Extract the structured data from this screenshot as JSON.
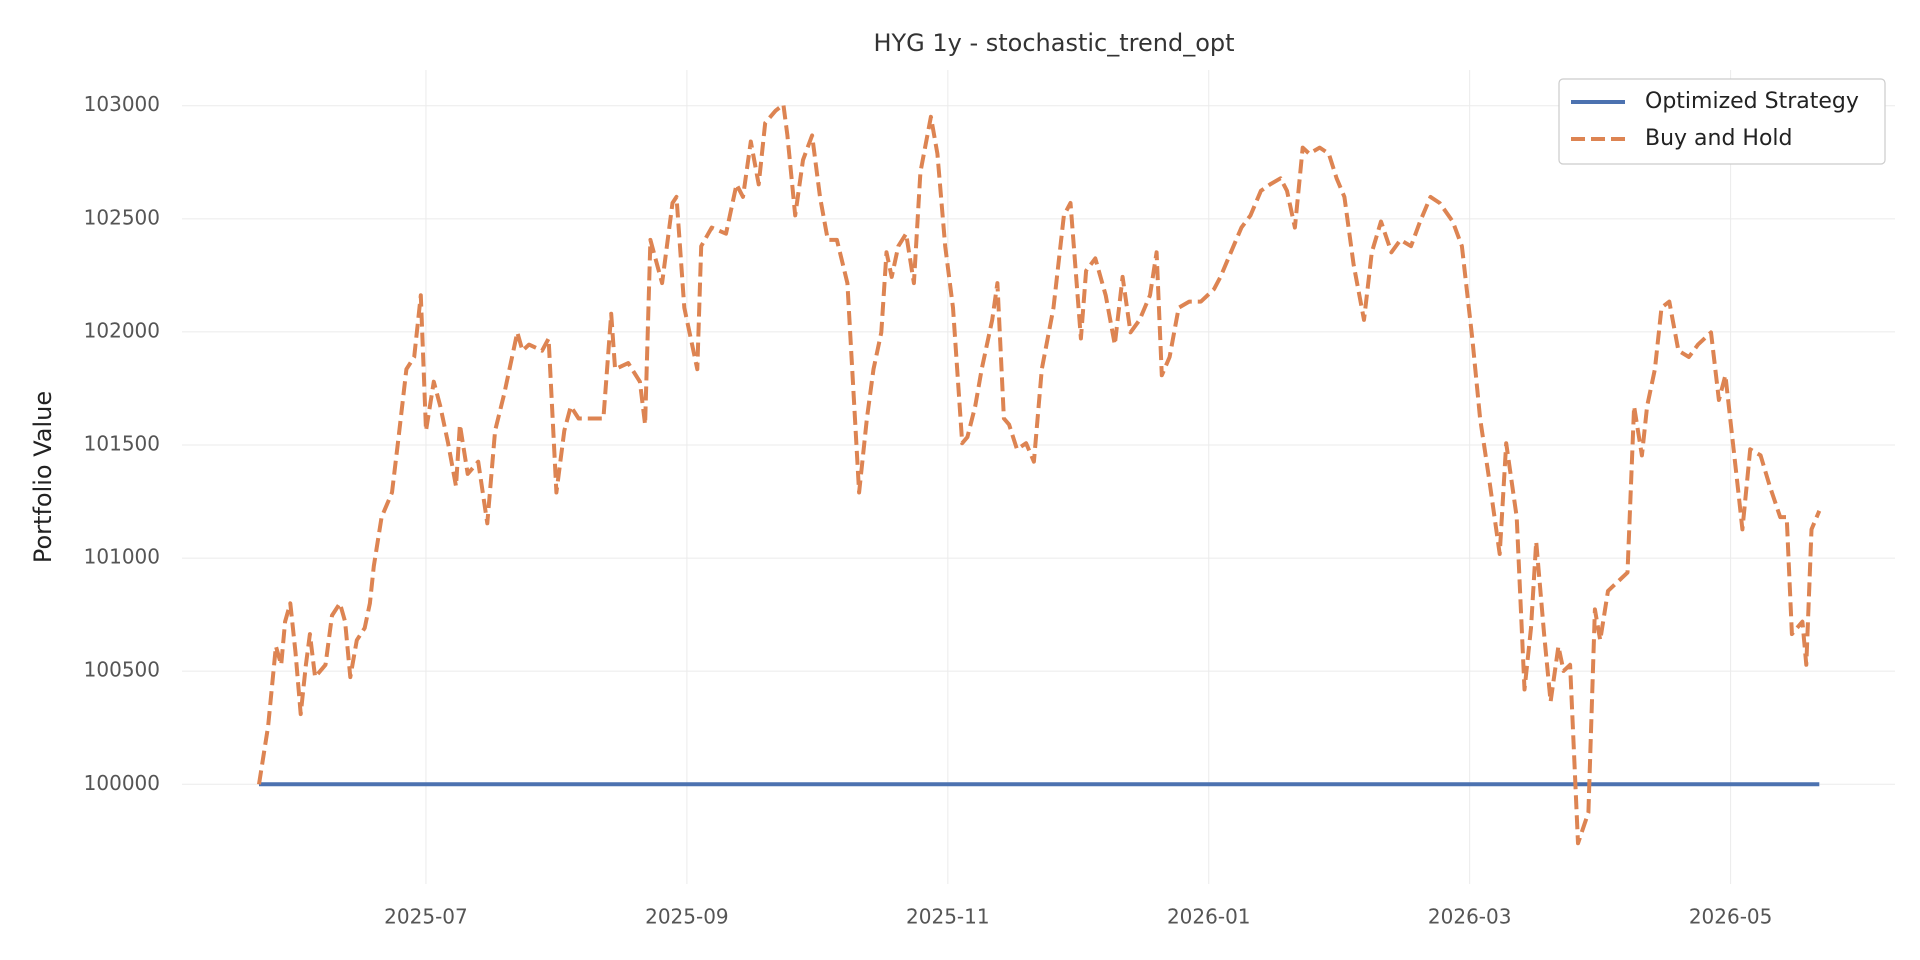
{
  "chart_data": {
    "type": "line",
    "title": "HYG 1y - stochastic_trend_opt",
    "y_label": "Portfolio Value",
    "xlim": [
      4.13,
      17.26
    ],
    "xticks": [
      {
        "value": 6,
        "label": "2025-07"
      },
      {
        "value": 8,
        "label": "2025-09"
      },
      {
        "value": 10,
        "label": "2025-11"
      },
      {
        "value": 12,
        "label": "2026-01"
      },
      {
        "value": 14,
        "label": "2026-03"
      },
      {
        "value": 16,
        "label": "2026-05"
      }
    ],
    "ylim": [
      99559,
      103158
    ],
    "yticks": [
      100000,
      100500,
      101000,
      101500,
      102000,
      102500,
      103000
    ],
    "grid": true,
    "legend": "upper right",
    "series": [
      {
        "name": "Optimized Strategy",
        "color": "#4c72b0",
        "linestyle": "solid",
        "x": [
          4.72,
          16.68
        ],
        "values": [
          100000,
          100000
        ]
      },
      {
        "name": "Buy and Hold",
        "color": "#dd8452",
        "linestyle": "dashed",
        "x": [
          4.72,
          4.79,
          4.85,
          4.89,
          4.92,
          4.96,
          5.0,
          5.04,
          5.08,
          5.11,
          5.15,
          5.23,
          5.28,
          5.34,
          5.38,
          5.42,
          5.47,
          5.53,
          5.57,
          5.6,
          5.66,
          5.74,
          5.79,
          5.85,
          5.91,
          5.96,
          6.0,
          6.06,
          6.11,
          6.17,
          6.23,
          6.26,
          6.32,
          6.4,
          6.47,
          6.53,
          6.6,
          6.7,
          6.74,
          6.79,
          6.89,
          6.94,
          7.0,
          7.06,
          7.11,
          7.17,
          7.26,
          7.36,
          7.42,
          7.45,
          7.55,
          7.64,
          7.68,
          7.72,
          7.81,
          7.89,
          7.92,
          7.98,
          8.08,
          8.11,
          8.19,
          8.3,
          8.38,
          8.43,
          8.49,
          8.55,
          8.6,
          8.68,
          8.74,
          8.77,
          8.83,
          8.89,
          8.96,
          9.02,
          9.08,
          9.15,
          9.23,
          9.32,
          9.38,
          9.43,
          9.49,
          9.53,
          9.57,
          9.62,
          9.68,
          9.74,
          9.79,
          9.87,
          9.92,
          9.98,
          10.04,
          10.11,
          10.15,
          10.21,
          10.26,
          10.34,
          10.38,
          10.43,
          10.47,
          10.53,
          10.6,
          10.66,
          10.72,
          10.81,
          10.89,
          10.94,
          11.02,
          11.06,
          11.13,
          11.21,
          11.28,
          11.34,
          11.4,
          11.47,
          11.55,
          11.6,
          11.64,
          11.7,
          11.77,
          11.85,
          11.94,
          12.04,
          12.09,
          12.15,
          12.25,
          12.32,
          12.4,
          12.47,
          12.55,
          12.6,
          12.66,
          12.72,
          12.77,
          12.85,
          12.92,
          12.98,
          13.04,
          13.11,
          13.19,
          13.25,
          13.32,
          13.4,
          13.47,
          13.55,
          13.62,
          13.7,
          13.77,
          13.87,
          13.94,
          14.02,
          14.08,
          14.15,
          14.23,
          14.28,
          14.36,
          14.42,
          14.47,
          14.51,
          14.57,
          14.62,
          14.68,
          14.72,
          14.77,
          14.83,
          14.91,
          14.96,
          15.0,
          15.06,
          15.21,
          15.26,
          15.32,
          15.36,
          15.42,
          15.47,
          15.53,
          15.6,
          15.68,
          15.75,
          15.85,
          15.91,
          15.96,
          16.06,
          16.09,
          16.15,
          16.23,
          16.3,
          16.38,
          16.43,
          16.47,
          16.55,
          16.58,
          16.62,
          16.68
        ],
        "values": [
          100000,
          100256,
          100610,
          100528,
          100719,
          100800,
          100583,
          100310,
          100528,
          100664,
          100474,
          100528,
          100746,
          100800,
          100719,
          100474,
          100637,
          100691,
          100800,
          100964,
          101181,
          101290,
          101535,
          101835,
          101889,
          102162,
          101563,
          101780,
          101671,
          101508,
          101318,
          101590,
          101372,
          101426,
          101154,
          101563,
          101726,
          101998,
          101917,
          101944,
          101917,
          101971,
          101290,
          101563,
          101671,
          101617,
          101617,
          101617,
          102080,
          101835,
          101862,
          101780,
          101590,
          102407,
          102216,
          102570,
          102597,
          102107,
          101835,
          102379,
          102461,
          102434,
          102652,
          102597,
          102842,
          102652,
          102924,
          102978,
          103005,
          102869,
          102515,
          102760,
          102869,
          102597,
          102407,
          102407,
          102216,
          101290,
          101617,
          101835,
          101998,
          102352,
          102243,
          102379,
          102434,
          102216,
          102706,
          102951,
          102788,
          102379,
          102107,
          101508,
          101535,
          101671,
          101835,
          102053,
          102216,
          101617,
          101590,
          101481,
          101508,
          101426,
          101835,
          102107,
          102515,
          102570,
          101971,
          102270,
          102325,
          102162,
          101944,
          102243,
          101998,
          102053,
          102162,
          102352,
          101808,
          101889,
          102107,
          102134,
          102134,
          102189,
          102243,
          102325,
          102461,
          102515,
          102624,
          102652,
          102679,
          102624,
          102461,
          102815,
          102788,
          102815,
          102788,
          102679,
          102597,
          102298,
          102053,
          102352,
          102488,
          102352,
          102407,
          102379,
          102488,
          102597,
          102570,
          102488,
          102379,
          101971,
          101617,
          101345,
          101018,
          101508,
          101181,
          100419,
          100691,
          101073,
          100664,
          100365,
          100610,
          100501,
          100528,
          99739,
          99875,
          100773,
          100637,
          100855,
          100936,
          101671,
          101454,
          101671,
          101835,
          102107,
          102134,
          101917,
          101889,
          101944,
          101998,
          101699,
          101808,
          101290,
          101127,
          101481,
          101454,
          101318,
          101181,
          101181,
          100664,
          100719,
          100528,
          101127,
          101209
        ]
      }
    ]
  }
}
